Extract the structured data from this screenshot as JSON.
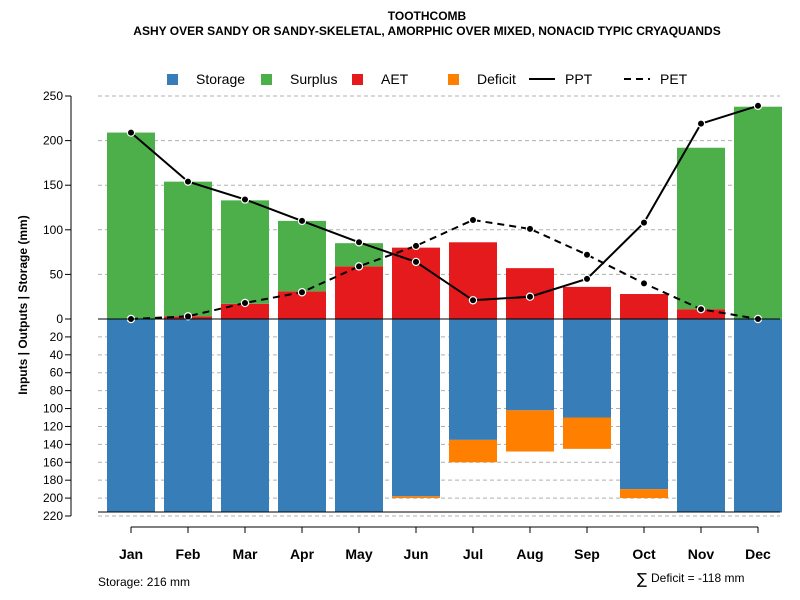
{
  "chart_data": {
    "type": "bar",
    "title": "TOOTHCOMB",
    "subtitle": "ASHY OVER SANDY OR SANDY-SKELETAL, AMORPHIC OVER MIXED, NONACID TYPIC CRYAQUANDS",
    "ylabel": "Inputs | Outputs | Storage    (mm)",
    "ylim": [
      -220,
      250
    ],
    "grid": true,
    "categories": [
      "Jan",
      "Feb",
      "Mar",
      "Apr",
      "May",
      "Jun",
      "Jul",
      "Aug",
      "Sep",
      "Oct",
      "Nov",
      "Dec"
    ],
    "upper_ticks": [
      0,
      50,
      100,
      150,
      200,
      250
    ],
    "lower_ticks": [
      20,
      40,
      60,
      80,
      100,
      120,
      140,
      160,
      180,
      200,
      220
    ],
    "series": [
      {
        "name": "Storage",
        "kind": "bar-down",
        "color": "#377eb8",
        "values": [
          216,
          216,
          216,
          216,
          216,
          198,
          135,
          102,
          110,
          190,
          216,
          216
        ]
      },
      {
        "name": "Surplus",
        "kind": "bar-up-stack-top",
        "color": "#4daf4a",
        "values": [
          209,
          151,
          116,
          79,
          26,
          0,
          0,
          0,
          0,
          0,
          181,
          238
        ]
      },
      {
        "name": "AET",
        "kind": "bar-up",
        "color": "#e41a1c",
        "values": [
          0,
          3,
          17,
          31,
          59,
          80,
          86,
          57,
          36,
          28,
          11,
          0
        ]
      },
      {
        "name": "Deficit",
        "kind": "bar-down-stack-below",
        "color": "#ff7f00",
        "values": [
          0,
          0,
          0,
          0,
          0,
          2,
          25,
          46,
          35,
          10,
          0,
          0
        ]
      },
      {
        "name": "PPT",
        "kind": "line-solid",
        "color": "#000000",
        "values": [
          209,
          154,
          134,
          110,
          86,
          64,
          21,
          25,
          45,
          108,
          219,
          239
        ]
      },
      {
        "name": "PET",
        "kind": "line-dashed",
        "color": "#000000",
        "values": [
          0,
          3,
          18,
          30,
          59,
          82,
          111,
          101,
          72,
          40,
          11,
          0
        ]
      }
    ],
    "legend": {
      "position": "top",
      "items": [
        "Storage",
        "Surplus",
        "AET",
        "Deficit",
        "PPT",
        "PET"
      ]
    },
    "annotations": {
      "storage": "Storage: 216 mm",
      "deficit_symbol": "∑",
      "deficit": "Deficit = -118 mm"
    }
  }
}
